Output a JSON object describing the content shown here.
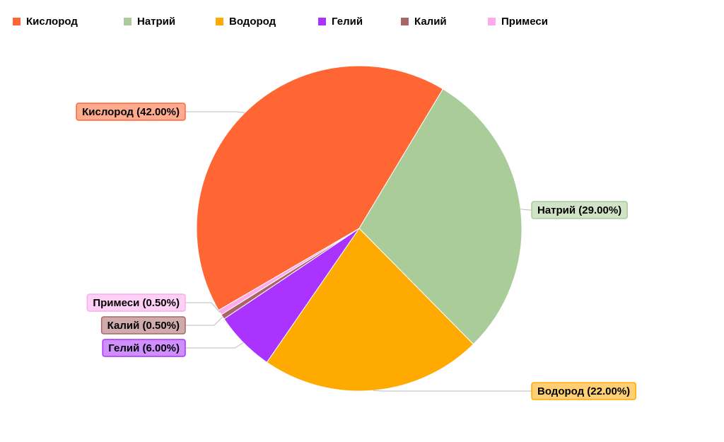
{
  "chart_data": {
    "type": "pie",
    "categories": [
      "Кислород",
      "Натрий",
      "Водород",
      "Гелий",
      "Калий",
      "Примеси"
    ],
    "values": [
      42,
      29,
      22,
      6,
      0.5,
      0.5
    ],
    "value_labels": [
      "Кислород (42.00%)",
      "Натрий (29.00%)",
      "Водород (22.00%)",
      "Гелий (6.00%)",
      "Калий (0.50%)",
      "Примеси (0.50%)"
    ],
    "colors": [
      "#ff6633",
      "#aacc99",
      "#ffaa00",
      "#aa33ff",
      "#aa6666",
      "#ffaaee"
    ],
    "legend": "top"
  }
}
